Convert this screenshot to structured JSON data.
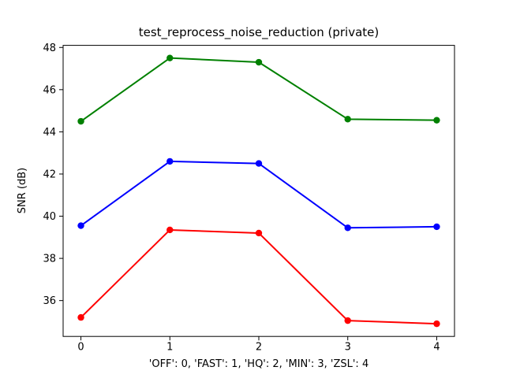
{
  "chart_data": {
    "type": "line",
    "title": "test_reprocess_noise_reduction (private)",
    "xlabel": "'OFF': 0, 'FAST': 1, 'HQ': 2, 'MIN': 3, 'ZSL': 4",
    "ylabel": "SNR (dB)",
    "x": [
      0,
      1,
      2,
      3,
      4
    ],
    "x_tick_labels": [
      "0",
      "1",
      "2",
      "3",
      "4"
    ],
    "y_ticks": [
      36,
      38,
      40,
      42,
      44,
      46,
      48
    ],
    "xlim": [
      -0.2,
      4.2
    ],
    "ylim": [
      34.3,
      48.1
    ],
    "grid": false,
    "legend": "none",
    "marker": "circle",
    "background_color": "#ffffff",
    "spine_color": "#000000",
    "series": [
      {
        "name": "green-series",
        "color": "#008000",
        "values": [
          44.5,
          47.5,
          47.3,
          44.6,
          44.55
        ]
      },
      {
        "name": "blue-series",
        "color": "#0000ff",
        "values": [
          39.55,
          42.6,
          42.5,
          39.45,
          39.5
        ]
      },
      {
        "name": "red-series",
        "color": "#ff0000",
        "values": [
          35.2,
          39.35,
          39.2,
          35.05,
          34.9
        ]
      }
    ]
  }
}
